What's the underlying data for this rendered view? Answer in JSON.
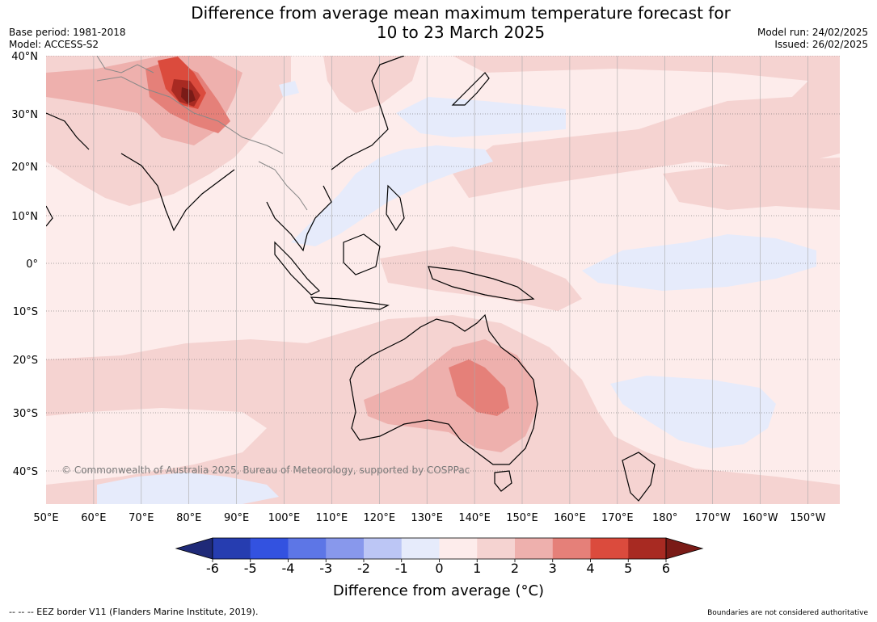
{
  "header": {
    "title_line1": "Difference from average mean maximum temperature forecast for",
    "title_line2": "10 to 23 March 2025",
    "base_period": "Base period: 1981-2018",
    "model": "Model: ACCESS-S2",
    "model_run": "Model run: 24/02/2025",
    "issued": "Issued: 26/02/2025"
  },
  "map": {
    "lat_labels": [
      "40°N",
      "30°N",
      "20°N",
      "10°N",
      "0°",
      "10°S",
      "20°S",
      "30°S",
      "40°S"
    ],
    "lon_labels": [
      "50°E",
      "60°E",
      "70°E",
      "80°E",
      "90°E",
      "100°E",
      "110°E",
      "120°E",
      "130°E",
      "140°E",
      "150°E",
      "160°E",
      "170°E",
      "180°",
      "170°W",
      "160°W",
      "150°W"
    ],
    "copyright": "© Commonwealth of Australia 2025, Bureau of Meteorology, supported by COSPPac"
  },
  "colorbar": {
    "ticks": [
      "-6",
      "-5",
      "-4",
      "-3",
      "-2",
      "-1",
      "0",
      "1",
      "2",
      "3",
      "4",
      "5",
      "6"
    ],
    "colors": [
      "#1f2a78",
      "#263db0",
      "#3352e0",
      "#5d76e6",
      "#8898ec",
      "#bcc6f5",
      "#e6ebfb",
      "#fdeceb",
      "#f5d3d1",
      "#eeb0ad",
      "#e58079",
      "#db4b3d",
      "#a82a22",
      "#7a1b17"
    ],
    "label": "Difference from average (°C)"
  },
  "footer": {
    "eez_note": "--  --  -- EEZ border V11 (Flanders Marine Institute, 2019).",
    "boundaries_note": "Boundaries are not considered authoritative"
  }
}
